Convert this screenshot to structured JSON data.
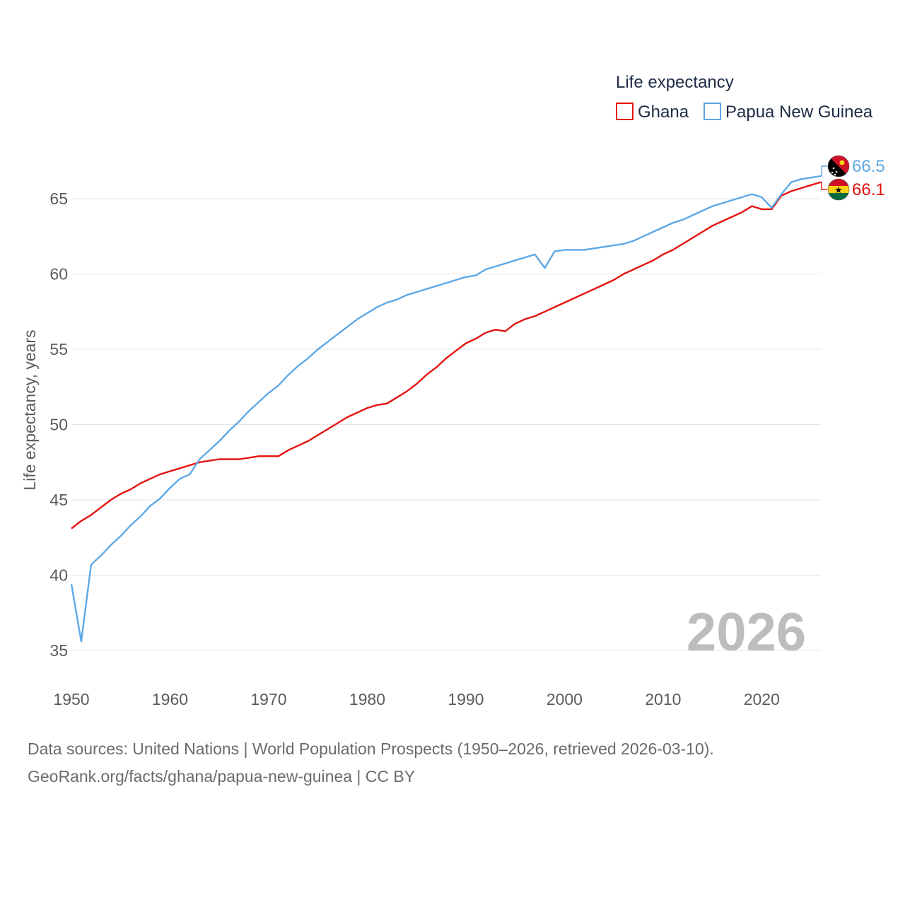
{
  "chart_data": {
    "type": "line",
    "legend_title": "Life expectancy",
    "legend_position": "top-right",
    "ylabel": "Life expectancy, years",
    "xlim": [
      1950,
      2026
    ],
    "ylim": [
      33,
      68
    ],
    "yticks": [
      35,
      40,
      45,
      50,
      55,
      60,
      65
    ],
    "xticks": [
      1950,
      1960,
      1970,
      1980,
      1990,
      2000,
      2010,
      2020
    ],
    "year_label": "2026",
    "grid": true,
    "series": [
      {
        "name": "Ghana",
        "color": "#e3140f",
        "end_label": "66.1",
        "flag": "ghana-flag",
        "points": [
          [
            1950,
            43.1
          ],
          [
            1951,
            43.6
          ],
          [
            1952,
            44.0
          ],
          [
            1953,
            44.5
          ],
          [
            1954,
            45.0
          ],
          [
            1955,
            45.4
          ],
          [
            1956,
            45.7
          ],
          [
            1957,
            46.1
          ],
          [
            1958,
            46.4
          ],
          [
            1959,
            46.7
          ],
          [
            1960,
            46.9
          ],
          [
            1961,
            47.1
          ],
          [
            1962,
            47.3
          ],
          [
            1963,
            47.5
          ],
          [
            1964,
            47.6
          ],
          [
            1965,
            47.7
          ],
          [
            1966,
            47.7
          ],
          [
            1967,
            47.7
          ],
          [
            1968,
            47.8
          ],
          [
            1969,
            47.9
          ],
          [
            1970,
            47.9
          ],
          [
            1971,
            47.9
          ],
          [
            1972,
            48.3
          ],
          [
            1973,
            48.6
          ],
          [
            1974,
            48.9
          ],
          [
            1975,
            49.3
          ],
          [
            1976,
            49.7
          ],
          [
            1977,
            50.1
          ],
          [
            1978,
            50.5
          ],
          [
            1979,
            50.8
          ],
          [
            1980,
            51.1
          ],
          [
            1981,
            51.3
          ],
          [
            1982,
            51.4
          ],
          [
            1983,
            51.8
          ],
          [
            1984,
            52.2
          ],
          [
            1985,
            52.7
          ],
          [
            1986,
            53.3
          ],
          [
            1987,
            53.8
          ],
          [
            1988,
            54.4
          ],
          [
            1989,
            54.9
          ],
          [
            1990,
            55.4
          ],
          [
            1991,
            55.7
          ],
          [
            1992,
            56.1
          ],
          [
            1993,
            56.3
          ],
          [
            1994,
            56.2
          ],
          [
            1995,
            56.7
          ],
          [
            1996,
            57.0
          ],
          [
            1997,
            57.2
          ],
          [
            1998,
            57.5
          ],
          [
            1999,
            57.8
          ],
          [
            2000,
            58.1
          ],
          [
            2001,
            58.4
          ],
          [
            2002,
            58.7
          ],
          [
            2003,
            59.0
          ],
          [
            2004,
            59.3
          ],
          [
            2005,
            59.6
          ],
          [
            2006,
            60.0
          ],
          [
            2007,
            60.3
          ],
          [
            2008,
            60.6
          ],
          [
            2009,
            60.9
          ],
          [
            2010,
            61.3
          ],
          [
            2011,
            61.6
          ],
          [
            2012,
            62.0
          ],
          [
            2013,
            62.4
          ],
          [
            2014,
            62.8
          ],
          [
            2015,
            63.2
          ],
          [
            2016,
            63.5
          ],
          [
            2017,
            63.8
          ],
          [
            2018,
            64.1
          ],
          [
            2019,
            64.5
          ],
          [
            2020,
            64.3
          ],
          [
            2021,
            64.3
          ],
          [
            2022,
            65.2
          ],
          [
            2023,
            65.5
          ],
          [
            2024,
            65.7
          ],
          [
            2025,
            65.9
          ],
          [
            2026,
            66.1
          ]
        ]
      },
      {
        "name": "Papua New Guinea",
        "color": "#5ea8e6",
        "end_label": "66.5",
        "flag": "papua-new-guinea-flag",
        "points": [
          [
            1950,
            39.4
          ],
          [
            1951,
            35.6
          ],
          [
            1952,
            40.7
          ],
          [
            1953,
            41.3
          ],
          [
            1954,
            42.0
          ],
          [
            1955,
            42.6
          ],
          [
            1956,
            43.3
          ],
          [
            1957,
            43.9
          ],
          [
            1958,
            44.6
          ],
          [
            1959,
            45.1
          ],
          [
            1960,
            45.8
          ],
          [
            1961,
            46.4
          ],
          [
            1962,
            46.7
          ],
          [
            1963,
            47.7
          ],
          [
            1964,
            48.3
          ],
          [
            1965,
            48.9
          ],
          [
            1966,
            49.6
          ],
          [
            1967,
            50.2
          ],
          [
            1968,
            50.9
          ],
          [
            1969,
            51.5
          ],
          [
            1970,
            52.1
          ],
          [
            1971,
            52.6
          ],
          [
            1972,
            53.3
          ],
          [
            1973,
            53.9
          ],
          [
            1974,
            54.4
          ],
          [
            1975,
            55.0
          ],
          [
            1976,
            55.5
          ],
          [
            1977,
            56.0
          ],
          [
            1978,
            56.5
          ],
          [
            1979,
            57.0
          ],
          [
            1980,
            57.4
          ],
          [
            1981,
            57.8
          ],
          [
            1982,
            58.1
          ],
          [
            1983,
            58.3
          ],
          [
            1984,
            58.6
          ],
          [
            1985,
            58.8
          ],
          [
            1986,
            59.0
          ],
          [
            1987,
            59.2
          ],
          [
            1988,
            59.4
          ],
          [
            1989,
            59.6
          ],
          [
            1990,
            59.8
          ],
          [
            1991,
            59.9
          ],
          [
            1992,
            60.3
          ],
          [
            1993,
            60.5
          ],
          [
            1994,
            60.7
          ],
          [
            1995,
            60.9
          ],
          [
            1996,
            61.1
          ],
          [
            1997,
            61.3
          ],
          [
            1998,
            60.4
          ],
          [
            1999,
            61.5
          ],
          [
            2000,
            61.6
          ],
          [
            2001,
            61.6
          ],
          [
            2002,
            61.6
          ],
          [
            2003,
            61.7
          ],
          [
            2004,
            61.8
          ],
          [
            2005,
            61.9
          ],
          [
            2006,
            62.0
          ],
          [
            2007,
            62.2
          ],
          [
            2008,
            62.5
          ],
          [
            2009,
            62.8
          ],
          [
            2010,
            63.1
          ],
          [
            2011,
            63.4
          ],
          [
            2012,
            63.6
          ],
          [
            2013,
            63.9
          ],
          [
            2014,
            64.2
          ],
          [
            2015,
            64.5
          ],
          [
            2016,
            64.7
          ],
          [
            2017,
            64.9
          ],
          [
            2018,
            65.1
          ],
          [
            2019,
            65.3
          ],
          [
            2020,
            65.1
          ],
          [
            2021,
            64.4
          ],
          [
            2022,
            65.3
          ],
          [
            2023,
            66.1
          ],
          [
            2024,
            66.3
          ],
          [
            2025,
            66.4
          ],
          [
            2026,
            66.5
          ]
        ]
      }
    ]
  },
  "footer": {
    "source_line": "Data sources: United Nations | World Population Prospects (1950–2026, retrieved 2026-03-10).",
    "url_line": "GeoRank.org/facts/ghana/papua-new-guinea | CC BY"
  }
}
